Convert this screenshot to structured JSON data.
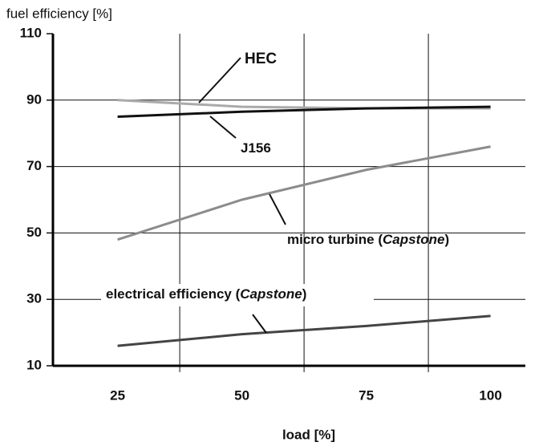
{
  "chart_data": {
    "type": "line",
    "y_axis_label": "fuel efficiency [%]",
    "x_axis_label": "load [%]",
    "x": [
      25,
      50,
      75,
      100
    ],
    "series": [
      {
        "name": "HEC",
        "color": "#aaaaaa",
        "values": [
          90,
          88,
          87.5,
          87.5
        ]
      },
      {
        "name": "J156",
        "color": "#111111",
        "values": [
          85,
          86.5,
          87.5,
          88
        ]
      },
      {
        "name": "micro turbine (Capstone)",
        "color": "#8c8c8c",
        "values": [
          48,
          60,
          69,
          76
        ]
      },
      {
        "name": "electrical efficiency (Capstone)",
        "color": "#444444",
        "values": [
          16,
          19.5,
          22,
          25
        ]
      }
    ],
    "annotations": [
      {
        "parts": [
          "HEC"
        ]
      },
      {
        "parts": [
          "J156"
        ]
      },
      {
        "parts": [
          "micro turbine (",
          "Capstone",
          ")"
        ]
      },
      {
        "parts": [
          "electrical efficiency (",
          "Capstone",
          ")"
        ]
      }
    ],
    "xlim": [
      12,
      107
    ],
    "ylim": [
      10,
      110
    ],
    "xticks": [
      25,
      50,
      75,
      100
    ],
    "xgrid": [
      37.5,
      62.5,
      87.5
    ],
    "yticks": [
      10,
      30,
      50,
      70,
      90,
      110
    ],
    "grid": true
  }
}
